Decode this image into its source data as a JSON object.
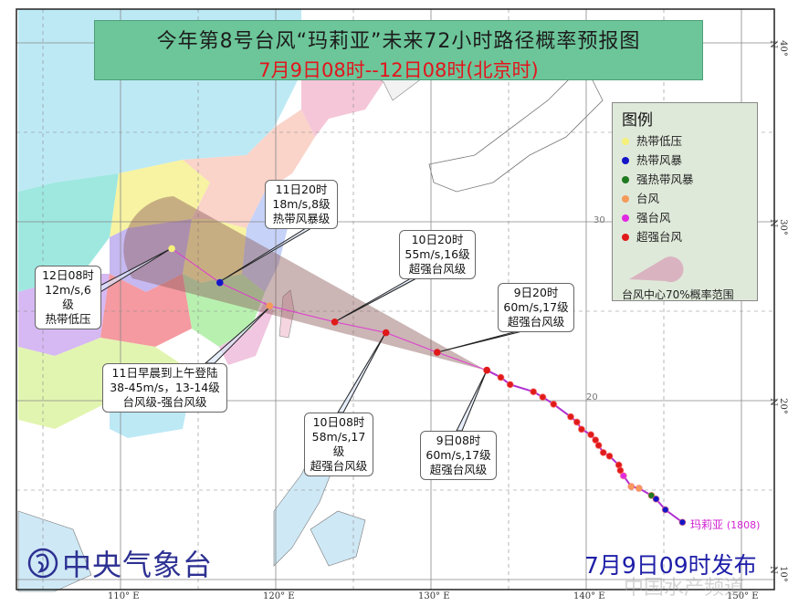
{
  "title": {
    "main": "今年第8号台风“玛莉亚”未来72小时路径概率预报图",
    "sub": "7月9日08时--12日08时(北京时)",
    "bg_color": "#6cc69a",
    "sub_color": "#e3141c"
  },
  "legend": {
    "title": "图例",
    "items": [
      {
        "label": "热带低压",
        "color": "#f5f07a",
        "icon": "typhoon-symbol-icon"
      },
      {
        "label": "热带风暴",
        "color": "#1515c8",
        "icon": "typhoon-symbol-icon"
      },
      {
        "label": "强热带风暴",
        "color": "#1f7a1f",
        "icon": "typhoon-symbol-icon"
      },
      {
        "label": "台风",
        "color": "#f59a5a",
        "icon": "typhoon-symbol-icon"
      },
      {
        "label": "强台风",
        "color": "#e02ae0",
        "icon": "typhoon-symbol-icon"
      },
      {
        "label": "超强台风",
        "color": "#e01a1a",
        "icon": "typhoon-symbol-icon"
      }
    ],
    "cone_label": "台风中心70%概率范围"
  },
  "storm": {
    "name": "玛莉亚",
    "number": "(1808)",
    "track_color": "#c21fc2"
  },
  "past_track": [
    {
      "lon": 133.6,
      "lat": 21.7,
      "level": "超强台风"
    },
    {
      "lon": 134.5,
      "lat": 21.3,
      "level": "超强台风"
    },
    {
      "lon": 135.1,
      "lat": 20.9,
      "level": "超强台风"
    },
    {
      "lon": 136.6,
      "lat": 20.5,
      "level": "超强台风"
    },
    {
      "lon": 137.2,
      "lat": 20.2,
      "level": "超强台风"
    },
    {
      "lon": 137.9,
      "lat": 19.8,
      "level": "超强台风"
    },
    {
      "lon": 139.0,
      "lat": 19.1,
      "level": "超强台风"
    },
    {
      "lon": 139.4,
      "lat": 18.8,
      "level": "超强台风"
    },
    {
      "lon": 139.7,
      "lat": 18.4,
      "level": "超强台风"
    },
    {
      "lon": 140.3,
      "lat": 18.1,
      "level": "超强台风"
    },
    {
      "lon": 140.6,
      "lat": 17.8,
      "level": "超强台风"
    },
    {
      "lon": 140.8,
      "lat": 17.5,
      "level": "超强台风"
    },
    {
      "lon": 141.1,
      "lat": 17.1,
      "level": "超强台风"
    },
    {
      "lon": 141.5,
      "lat": 16.9,
      "level": "超强台风"
    },
    {
      "lon": 142.1,
      "lat": 16.4,
      "level": "超强台风"
    },
    {
      "lon": 142.2,
      "lat": 16.1,
      "level": "超强台风"
    },
    {
      "lon": 142.4,
      "lat": 15.8,
      "level": "强台风"
    },
    {
      "lon": 142.9,
      "lat": 15.2,
      "level": "台风"
    },
    {
      "lon": 143.4,
      "lat": 15.1,
      "level": "台风"
    },
    {
      "lon": 144.2,
      "lat": 14.7,
      "level": "强热带风暴"
    },
    {
      "lon": 144.5,
      "lat": 14.5,
      "level": "热带风暴"
    },
    {
      "lon": 145.1,
      "lat": 13.9,
      "level": "热带风暴"
    },
    {
      "lon": 146.2,
      "lat": 13.2,
      "level": "热带风暴"
    }
  ],
  "forecast_track": [
    {
      "lon": 133.6,
      "lat": 21.7,
      "level": "超强台风"
    },
    {
      "lon": 130.4,
      "lat": 22.7,
      "level": "超强台风"
    },
    {
      "lon": 127.1,
      "lat": 23.8,
      "level": "超强台风"
    },
    {
      "lon": 123.8,
      "lat": 24.4,
      "level": "超强台风"
    },
    {
      "lon": 119.6,
      "lat": 25.3,
      "level": "台风"
    },
    {
      "lon": 116.4,
      "lat": 26.6,
      "level": "热带风暴"
    },
    {
      "lon": 113.3,
      "lat": 28.5,
      "level": "热带低压"
    }
  ],
  "callouts": [
    {
      "time": "9日08时",
      "wind": "60m/s,17级",
      "level": "超强台风级"
    },
    {
      "time": "9日20时",
      "wind": "60m/s,17级",
      "level": "超强台风级"
    },
    {
      "time": "10日08时",
      "wind": "58m/s,17级",
      "level": "超强台风级"
    },
    {
      "time": "10日20时",
      "wind": "55m/s,16级",
      "level": "超强台风级"
    },
    {
      "time": "11日早晨到上午登陆",
      "wind": "38-45m/s，13-14级",
      "level": "台风级-强台风级"
    },
    {
      "time": "11日20时",
      "wind": "18m/s,8级",
      "level": "热带风暴级"
    },
    {
      "time": "12日08时",
      "wind": "12m/s,6级",
      "level": "热带低压"
    }
  ],
  "axes": {
    "lon_labels": [
      "110° E",
      "120° E",
      "130° E",
      "140° E",
      "150° E"
    ],
    "lat_labels": [
      "40° N",
      "30° N",
      "20° N",
      "10° N"
    ],
    "inner_lat_labels": [
      "30",
      "20"
    ]
  },
  "footer": {
    "agency": "中央气象台",
    "issued": "7月9日09时发布",
    "watermark": "中国水产频道"
  }
}
